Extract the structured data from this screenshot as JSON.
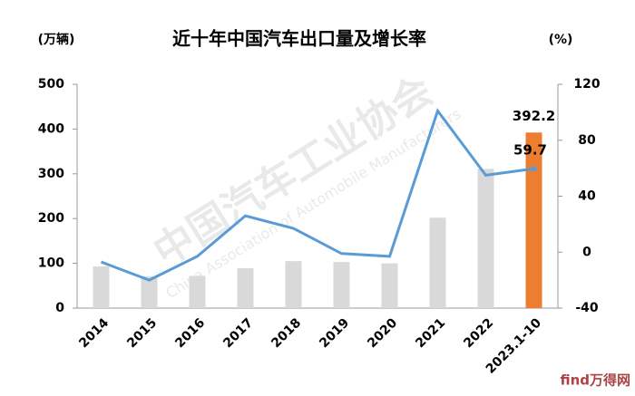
{
  "chart_data": {
    "type": "bar-line",
    "title": "近十年中国汽车出口量及增长率",
    "y_label": "(万辆)",
    "y2_label": "(%)",
    "watermark": "中国汽车工业协会",
    "watermark_en": "China Association of Automobile Manufacturers",
    "logo": "find万得网",
    "categories": [
      "2014",
      "2015",
      "2016",
      "2017",
      "2018",
      "2019",
      "2020",
      "2021",
      "2022",
      "2023.1-10"
    ],
    "series": [
      {
        "type": "bar",
        "color": "#d9d9d9",
        "highlight_color": "#ed7d31",
        "values": [
          93,
          71,
          72,
          89,
          105,
          103,
          100,
          202,
          311,
          392.2
        ]
      },
      {
        "type": "line",
        "axis": "y2",
        "color": "#5b9bd5",
        "values": [
          -7,
          -20,
          -3,
          26,
          17,
          -1,
          -3,
          101,
          55,
          59.7
        ]
      }
    ],
    "ylim": [
      0,
      500
    ],
    "yticks": [
      0,
      100,
      200,
      300,
      400,
      500
    ],
    "y2lim": [
      -40,
      120
    ],
    "y2ticks": [
      -40,
      0,
      40,
      80,
      120
    ]
  }
}
